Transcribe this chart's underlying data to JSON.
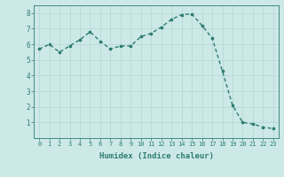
{
  "x": [
    0,
    1,
    2,
    3,
    4,
    5,
    6,
    7,
    8,
    9,
    10,
    11,
    12,
    13,
    14,
    15,
    16,
    17,
    18,
    19,
    20,
    21,
    22,
    23
  ],
  "y": [
    5.7,
    6.0,
    5.5,
    5.9,
    6.3,
    6.8,
    6.2,
    5.7,
    5.9,
    5.9,
    6.5,
    6.7,
    7.1,
    7.6,
    7.9,
    7.95,
    7.2,
    6.4,
    4.3,
    2.1,
    1.0,
    0.9,
    0.7,
    0.6
  ],
  "xlim": [
    -0.5,
    23.5
  ],
  "ylim": [
    0,
    8.5
  ],
  "yticks": [
    1,
    2,
    3,
    4,
    5,
    6,
    7,
    8
  ],
  "xticks": [
    0,
    1,
    2,
    3,
    4,
    5,
    6,
    7,
    8,
    9,
    10,
    11,
    12,
    13,
    14,
    15,
    16,
    17,
    18,
    19,
    20,
    21,
    22,
    23
  ],
  "xlabel": "Humidex (Indice chaleur)",
  "line_color": "#2e7d6e",
  "marker_color": "#2e7d6e",
  "bg_color": "#cce9e7",
  "grid_color": "#b8d8d6",
  "axis_color": "#2e7d6e",
  "tick_color": "#2e7d6e",
  "label_color": "#2e7d6e"
}
